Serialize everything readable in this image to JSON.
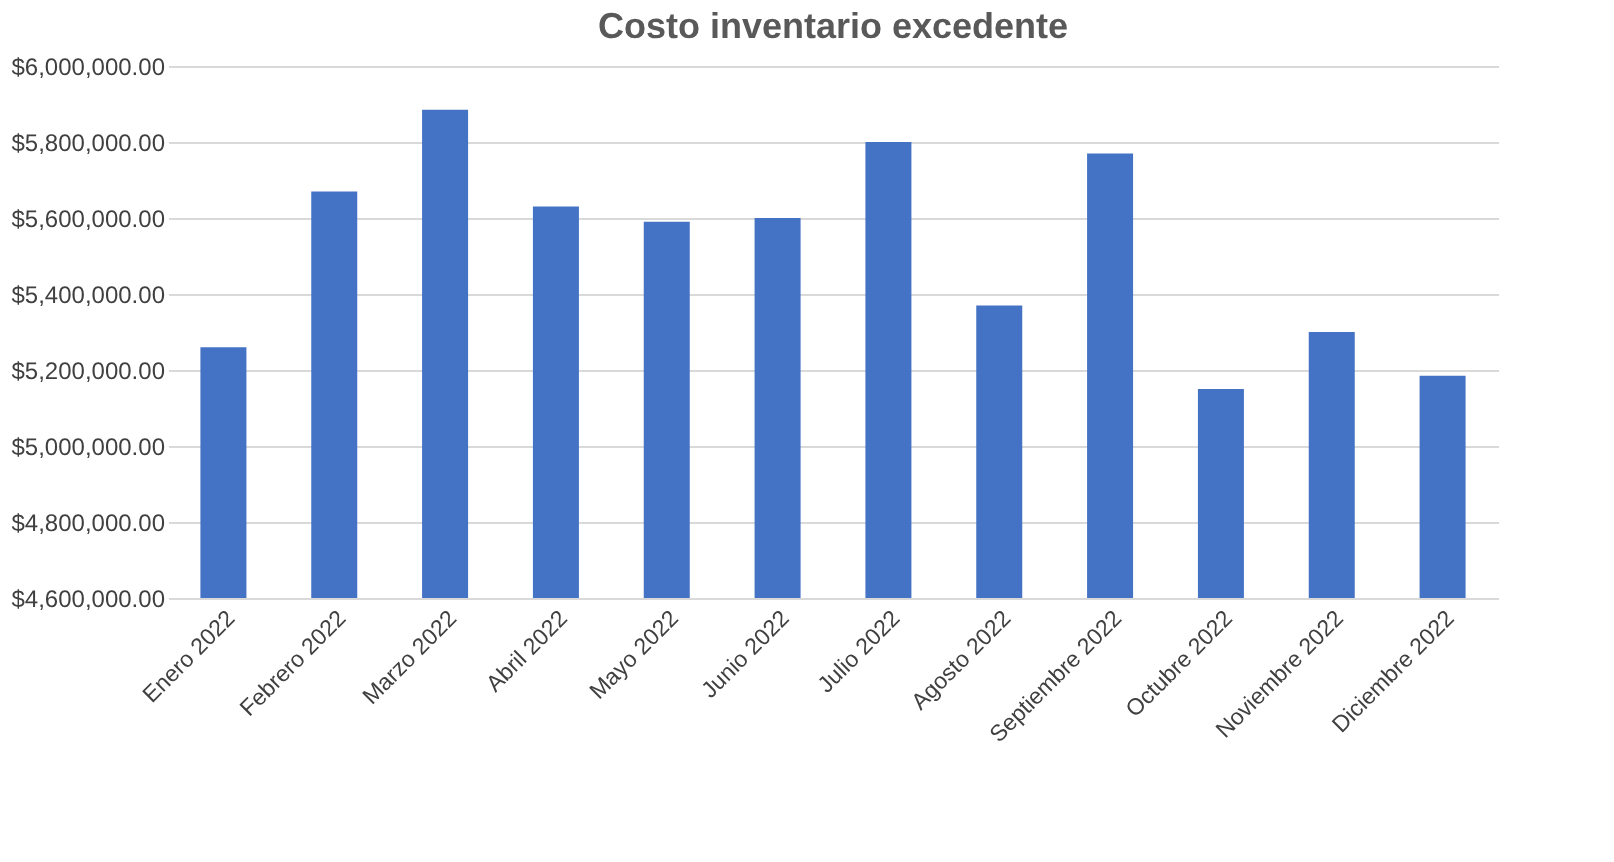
{
  "chart_data": {
    "type": "bar",
    "title": "Costo inventario excedente",
    "categories": [
      "Enero 2022",
      "Febrero 2022",
      "Marzo 2022",
      "Abril 2022",
      "Mayo 2022",
      "Junio 2022",
      "Julio 2022",
      "Agosto 2022",
      "Septiembre 2022",
      "Octubre 2022",
      "Noviembre 2022",
      "Diciembre 2022"
    ],
    "values": [
      5260000,
      5670000,
      5885000,
      5630000,
      5590000,
      5600000,
      5800000,
      5370000,
      5770000,
      5150000,
      5300000,
      5185000
    ],
    "color": "#4472c4",
    "ylim": [
      4600000,
      6000000
    ],
    "yticks": [
      {
        "value": 4600000,
        "label": "$4,600,000.00"
      },
      {
        "value": 4800000,
        "label": "$4,800,000.00"
      },
      {
        "value": 5000000,
        "label": "$5,000,000.00"
      },
      {
        "value": 5200000,
        "label": "$5,200,000.00"
      },
      {
        "value": 5400000,
        "label": "$5,400,000.00"
      },
      {
        "value": 5600000,
        "label": "$5,600,000.00"
      },
      {
        "value": 5800000,
        "label": "$5,800,000.00"
      },
      {
        "value": 6000000,
        "label": "$6,000,000.00"
      }
    ],
    "grid": "y"
  }
}
